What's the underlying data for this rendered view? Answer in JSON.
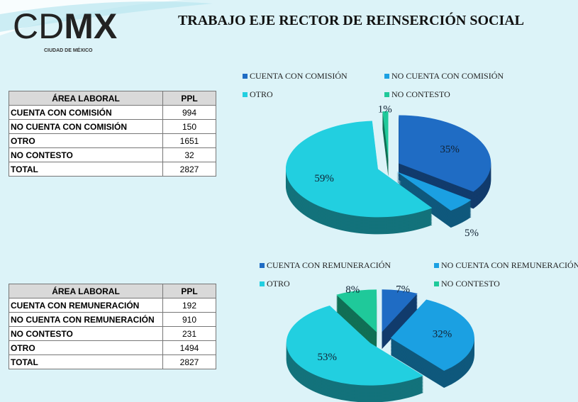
{
  "header": {
    "logo": [
      "CD",
      "MX"
    ],
    "logo_subtitle": "CIUDAD DE MÉXICO",
    "title": "TRABAJO EJE RECTOR DE REINSERCIÓN SOCIAL"
  },
  "tables": [
    {
      "columns": [
        "ÁREA LABORAL",
        "PPL"
      ],
      "rows": [
        [
          "CUENTA CON COMISIÓN",
          "994"
        ],
        [
          "NO CUENTA CON COMISIÓN",
          "150"
        ],
        [
          "OTRO",
          "1651"
        ],
        [
          "NO CONTESTO",
          "32"
        ],
        [
          "TOTAL",
          "2827"
        ]
      ]
    },
    {
      "columns": [
        "ÁREA LABORAL",
        "PPL"
      ],
      "rows": [
        [
          "CUENTA CON REMUNERACIÓN",
          "192"
        ],
        [
          "NO CUENTA CON REMUNERACIÓN",
          "910"
        ],
        [
          "NO CONTESTO",
          "231"
        ],
        [
          "OTRO",
          "1494"
        ],
        [
          "TOTAL",
          "2827"
        ]
      ]
    }
  ],
  "chart_data": [
    {
      "type": "pie",
      "categories": [
        "CUENTA CON COMISIÓN",
        "NO CUENTA CON COMISIÓN",
        "OTRO",
        "NO CONTESTO"
      ],
      "values": [
        35,
        5,
        59,
        1
      ],
      "value_labels": [
        "35%",
        "5%",
        "59%",
        "1%"
      ],
      "colors": [
        "#1f6cc4",
        "#1ba0e2",
        "#22cfe0",
        "#1fc99a"
      ],
      "legend": "top"
    },
    {
      "type": "pie",
      "categories": [
        "CUENTA CON REMUNERACIÓN",
        "NO CUENTA CON REMUNERACIÓN",
        "OTRO",
        "NO CONTESTO"
      ],
      "values": [
        7,
        32,
        53,
        8
      ],
      "value_labels": [
        "7%",
        "32%",
        "53%",
        "8%"
      ],
      "colors": [
        "#1f6cc4",
        "#1ba0e2",
        "#22cfe0",
        "#1fc99a"
      ],
      "legend": "top"
    }
  ]
}
